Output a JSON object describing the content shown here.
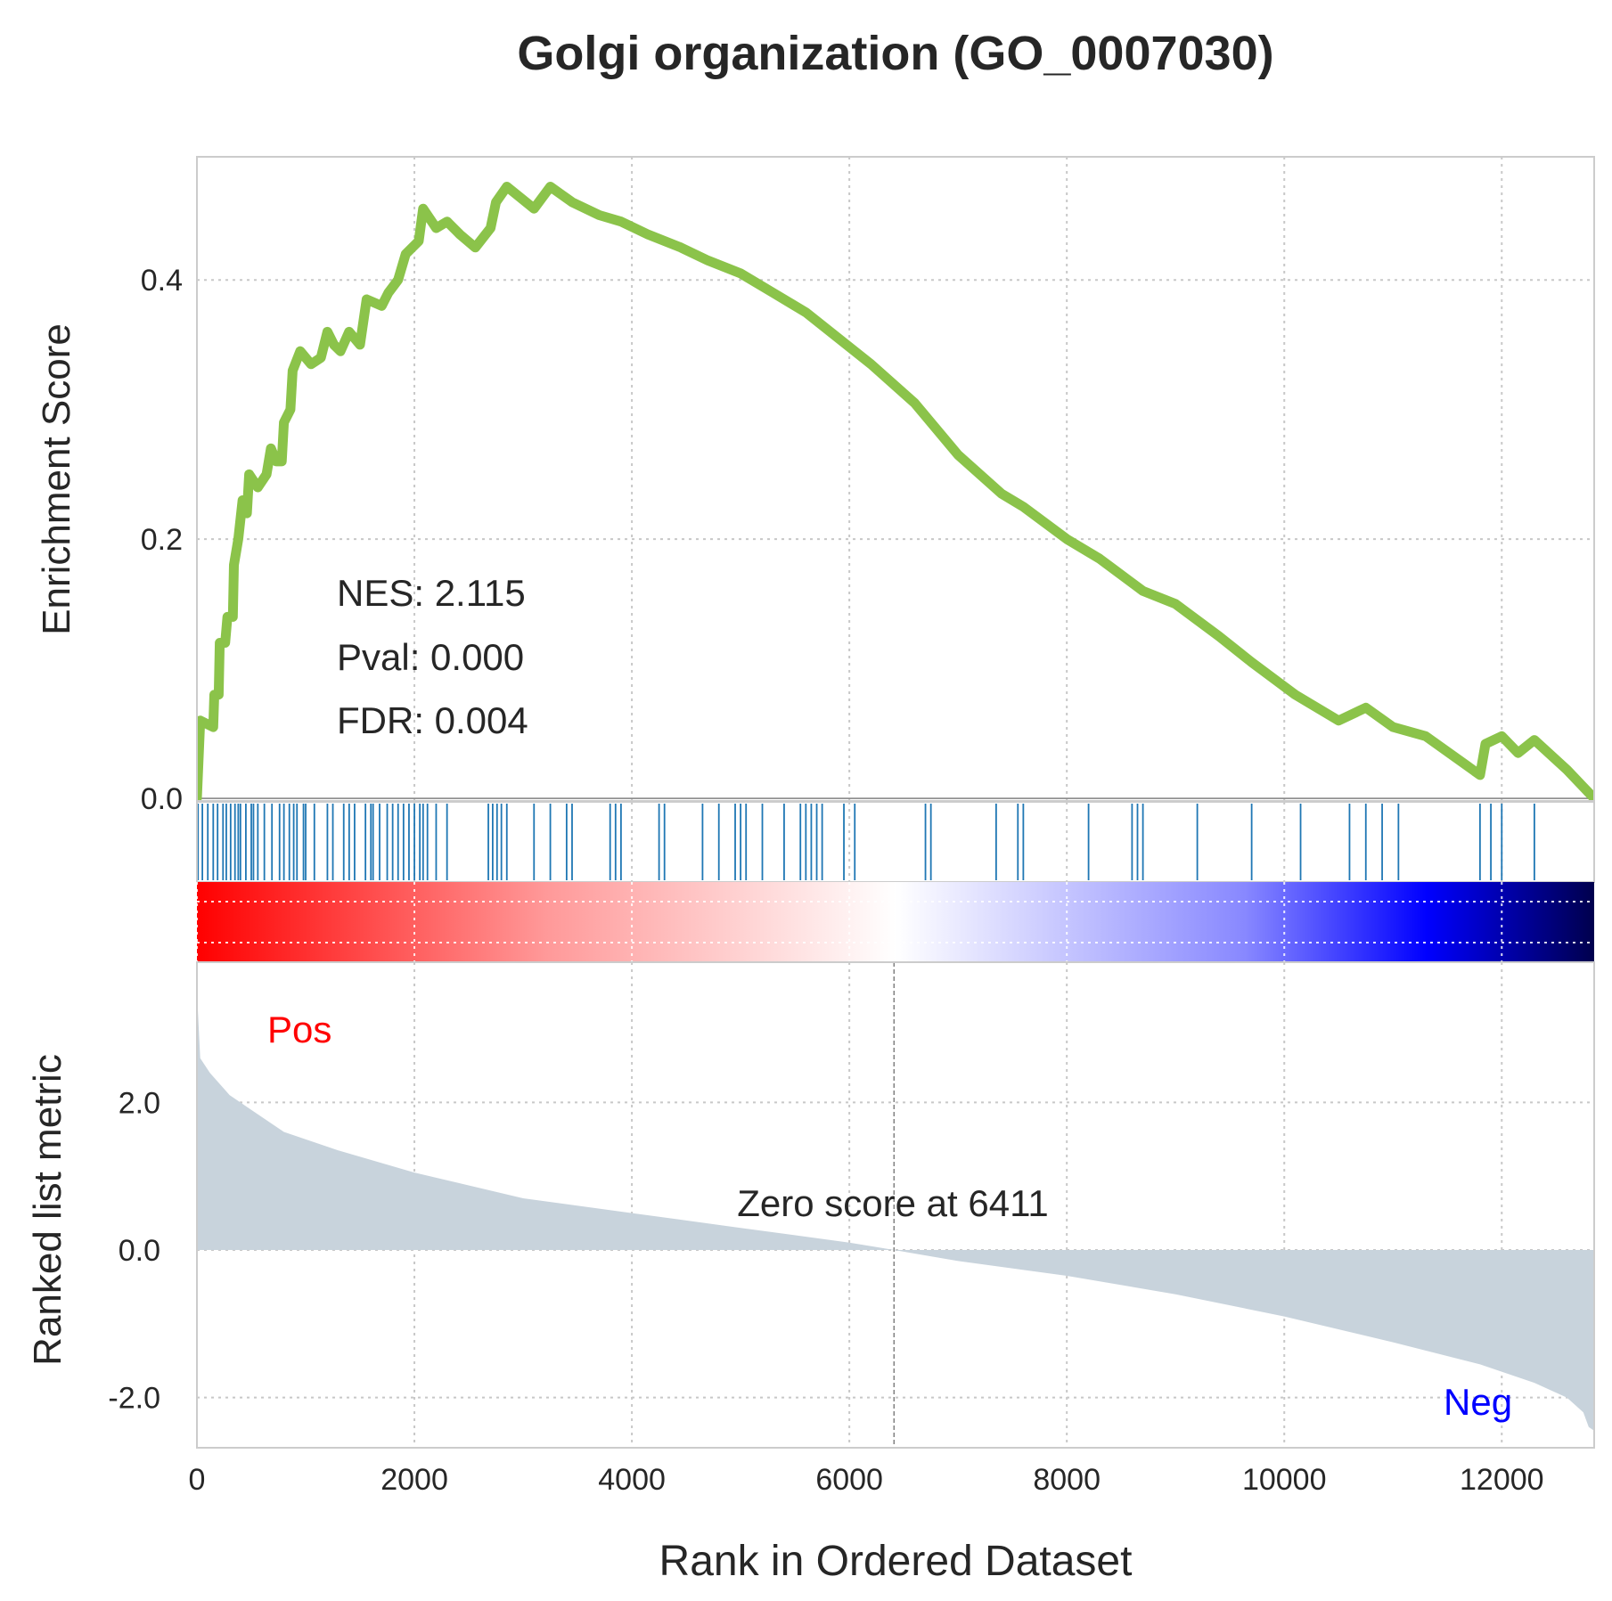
{
  "chart_data": {
    "type": "line",
    "title": "Golgi organization (GO_0007030)",
    "xlabel": "Rank in Ordered Dataset",
    "xlim": [
      0,
      12850
    ],
    "x_ticks": [
      0,
      2000,
      4000,
      6000,
      8000,
      10000,
      12000
    ],
    "x_tick_labels": [
      "0",
      "2000",
      "4000",
      "6000",
      "8000",
      "10000",
      "12000"
    ],
    "grid": true,
    "enrichment": {
      "ylabel": "Enrichment Score",
      "ylim": [
        -0.002,
        0.495
      ],
      "y_ticks": [
        0.0,
        0.2,
        0.4
      ],
      "y_tick_labels": [
        "0.0",
        "0.2",
        "0.4"
      ],
      "line_color": "#8bc34a",
      "points": [
        [
          0,
          0.0
        ],
        [
          30,
          0.06
        ],
        [
          150,
          0.055
        ],
        [
          160,
          0.08
        ],
        [
          200,
          0.08
        ],
        [
          210,
          0.12
        ],
        [
          260,
          0.12
        ],
        [
          280,
          0.14
        ],
        [
          330,
          0.14
        ],
        [
          340,
          0.18
        ],
        [
          380,
          0.2
        ],
        [
          420,
          0.23
        ],
        [
          460,
          0.22
        ],
        [
          480,
          0.25
        ],
        [
          560,
          0.24
        ],
        [
          640,
          0.25
        ],
        [
          680,
          0.27
        ],
        [
          730,
          0.26
        ],
        [
          780,
          0.26
        ],
        [
          800,
          0.29
        ],
        [
          860,
          0.3
        ],
        [
          880,
          0.33
        ],
        [
          950,
          0.345
        ],
        [
          1050,
          0.335
        ],
        [
          1140,
          0.34
        ],
        [
          1200,
          0.36
        ],
        [
          1260,
          0.35
        ],
        [
          1320,
          0.345
        ],
        [
          1400,
          0.36
        ],
        [
          1500,
          0.35
        ],
        [
          1560,
          0.385
        ],
        [
          1700,
          0.38
        ],
        [
          1760,
          0.39
        ],
        [
          1850,
          0.4
        ],
        [
          1920,
          0.42
        ],
        [
          2040,
          0.43
        ],
        [
          2080,
          0.455
        ],
        [
          2200,
          0.44
        ],
        [
          2300,
          0.445
        ],
        [
          2420,
          0.435
        ],
        [
          2560,
          0.425
        ],
        [
          2700,
          0.44
        ],
        [
          2750,
          0.46
        ],
        [
          2850,
          0.472
        ],
        [
          3100,
          0.455
        ],
        [
          3250,
          0.472
        ],
        [
          3450,
          0.46
        ],
        [
          3700,
          0.45
        ],
        [
          3900,
          0.445
        ],
        [
          4150,
          0.435
        ],
        [
          4450,
          0.425
        ],
        [
          4700,
          0.415
        ],
        [
          5000,
          0.405
        ],
        [
          5300,
          0.39
        ],
        [
          5600,
          0.375
        ],
        [
          5900,
          0.355
        ],
        [
          6200,
          0.335
        ],
        [
          6600,
          0.305
        ],
        [
          7000,
          0.265
        ],
        [
          7400,
          0.235
        ],
        [
          7600,
          0.225
        ],
        [
          8000,
          0.2
        ],
        [
          8300,
          0.185
        ],
        [
          8700,
          0.16
        ],
        [
          9000,
          0.15
        ],
        [
          9400,
          0.125
        ],
        [
          9700,
          0.105
        ],
        [
          10100,
          0.08
        ],
        [
          10500,
          0.06
        ],
        [
          10750,
          0.07
        ],
        [
          11000,
          0.055
        ],
        [
          11300,
          0.048
        ],
        [
          11800,
          0.018
        ],
        [
          11850,
          0.042
        ],
        [
          12000,
          0.048
        ],
        [
          12150,
          0.035
        ],
        [
          12300,
          0.045
        ],
        [
          12600,
          0.022
        ],
        [
          12850,
          0.0
        ]
      ]
    },
    "hits": [
      10,
      50,
      100,
      150,
      190,
      240,
      270,
      310,
      350,
      380,
      400,
      450,
      500,
      520,
      560,
      620,
      690,
      760,
      800,
      850,
      890,
      920,
      980,
      1000,
      1080,
      1200,
      1250,
      1350,
      1400,
      1450,
      1550,
      1600,
      1620,
      1680,
      1750,
      1800,
      1850,
      1900,
      1950,
      2000,
      2050,
      2080,
      2120,
      2200,
      2300,
      2680,
      2720,
      2760,
      2800,
      2850,
      3100,
      3250,
      3400,
      3450,
      3800,
      3850,
      3900,
      4250,
      4300,
      4650,
      4800,
      4950,
      5000,
      5050,
      5200,
      5400,
      5550,
      5600,
      5650,
      5700,
      5750,
      5950,
      6050,
      6700,
      6750,
      7350,
      7550,
      7600,
      8200,
      8600,
      8650,
      8700,
      9200,
      9700,
      10150,
      10600,
      10750,
      10900,
      11050,
      11800,
      11900,
      12000,
      12300
    ],
    "colorbar": {
      "stops": [
        {
          "offset": 0.0,
          "color": "#ff0000"
        },
        {
          "offset": 0.25,
          "color": "#ff9999"
        },
        {
          "offset": 0.5,
          "color": "#ffffff"
        },
        {
          "offset": 0.75,
          "color": "#8888ff"
        },
        {
          "offset": 0.88,
          "color": "#0000ff"
        },
        {
          "offset": 1.0,
          "color": "#00004d"
        }
      ]
    },
    "ranked": {
      "ylabel": "Ranked list metric",
      "ylim": [
        -2.68,
        3.9
      ],
      "y_ticks": [
        2.0,
        0.0,
        -2.0
      ],
      "y_tick_labels": [
        "2.0",
        "0.0",
        "-2.0"
      ],
      "fill_color": "#c8d3dc",
      "points": [
        [
          0,
          3.5
        ],
        [
          30,
          2.6
        ],
        [
          120,
          2.4
        ],
        [
          300,
          2.1
        ],
        [
          500,
          1.9
        ],
        [
          800,
          1.6
        ],
        [
          1300,
          1.35
        ],
        [
          2000,
          1.05
        ],
        [
          3000,
          0.7
        ],
        [
          4000,
          0.5
        ],
        [
          5000,
          0.3
        ],
        [
          6000,
          0.1
        ],
        [
          6411,
          0.0
        ],
        [
          7000,
          -0.15
        ],
        [
          8000,
          -0.35
        ],
        [
          9000,
          -0.6
        ],
        [
          10000,
          -0.9
        ],
        [
          11000,
          -1.25
        ],
        [
          11800,
          -1.55
        ],
        [
          12300,
          -1.8
        ],
        [
          12600,
          -2.0
        ],
        [
          12750,
          -2.2
        ],
        [
          12800,
          -2.4
        ],
        [
          12850,
          -2.45
        ]
      ],
      "zero_score_rank": 6411
    },
    "annotations": {
      "nes": "NES: 2.115",
      "pval": "Pval: 0.000",
      "fdr": "FDR: 0.004",
      "zero_score": "Zero score at 6411",
      "pos": "Pos",
      "neg": "Neg"
    },
    "colors": {
      "hit": "#1f77b4",
      "pos": "#ff0000",
      "neg": "#0000ff",
      "grid": "#c8c8c8",
      "text": "#262626",
      "frame": "#cccccc"
    }
  }
}
